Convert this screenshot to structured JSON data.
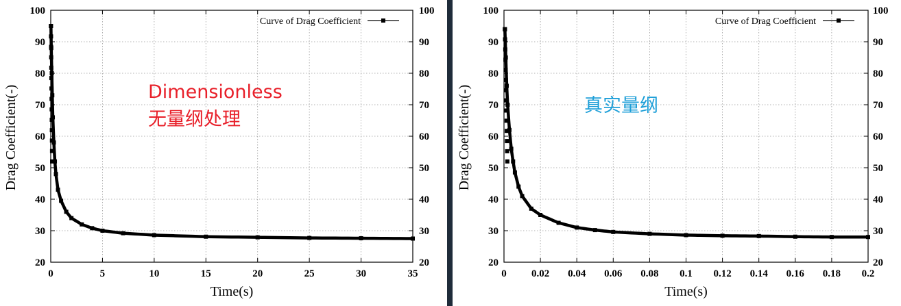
{
  "divider_color": "#1f2c3a",
  "chart_data": [
    {
      "type": "line",
      "title": "",
      "xlabel": "Time(s)",
      "ylabel": "Drag Coefficient(-)",
      "xlim": [
        0,
        35
      ],
      "ylim": [
        20,
        100
      ],
      "xticks": [
        "0",
        "5",
        "10",
        "15",
        "20",
        "25",
        "30",
        "35"
      ],
      "xtick_values": [
        0,
        5,
        10,
        15,
        20,
        25,
        30,
        35
      ],
      "yticks": [
        "20",
        "30",
        "40",
        "50",
        "60",
        "70",
        "80",
        "90",
        "100"
      ],
      "ytick_values": [
        20,
        30,
        40,
        50,
        60,
        70,
        80,
        90,
        100
      ],
      "grid": true,
      "legend_position": "top-right",
      "series": [
        {
          "name": "Curve of Drag Coefficient",
          "color": "#000000",
          "marker": "square",
          "x": [
            0.02,
            0.05,
            0.1,
            0.15,
            0.2,
            0.3,
            0.4,
            0.5,
            0.7,
            1.0,
            1.5,
            2,
            3,
            4,
            5,
            7,
            10,
            15,
            20,
            25,
            30,
            35
          ],
          "y": [
            95,
            88,
            80,
            73,
            66,
            58,
            52,
            48,
            43,
            39.5,
            36,
            34,
            32,
            30.8,
            30,
            29.2,
            28.6,
            28.1,
            27.9,
            27.7,
            27.6,
            27.5
          ]
        }
      ],
      "annotation": {
        "lines": [
          "Dimensionless",
          "无量纲处理"
        ],
        "color": "#e8202a"
      }
    },
    {
      "type": "line",
      "title": "",
      "xlabel": "Time(s)",
      "ylabel": "Drag Coefficient(-)",
      "xlim": [
        0,
        0.2
      ],
      "ylim": [
        20,
        100
      ],
      "xticks": [
        "0",
        "0.02",
        "0.04",
        "0.06",
        "0.08",
        "0.1",
        "0.12",
        "0.14",
        "0.16",
        "0.18",
        "0.2"
      ],
      "xtick_values": [
        0,
        0.02,
        0.04,
        0.06,
        0.08,
        0.1,
        0.12,
        0.14,
        0.16,
        0.18,
        0.2
      ],
      "yticks": [
        "20",
        "30",
        "40",
        "50",
        "60",
        "70",
        "80",
        "90",
        "100"
      ],
      "ytick_values": [
        20,
        30,
        40,
        50,
        60,
        70,
        80,
        90,
        100
      ],
      "grid": true,
      "legend_position": "top-right",
      "series": [
        {
          "name": "Curve of Drag Coefficient",
          "color": "#000000",
          "marker": "square",
          "x": [
            0.0005,
            0.001,
            0.0015,
            0.002,
            0.003,
            0.004,
            0.005,
            0.006,
            0.008,
            0.01,
            0.015,
            0.02,
            0.03,
            0.04,
            0.05,
            0.06,
            0.08,
            0.1,
            0.12,
            0.14,
            0.16,
            0.18,
            0.2
          ],
          "y": [
            94,
            85,
            76,
            70,
            62,
            56,
            52,
            48.5,
            44,
            41,
            37,
            35,
            32.5,
            31,
            30.2,
            29.6,
            29,
            28.6,
            28.4,
            28.3,
            28.1,
            28.0,
            28.0
          ]
        }
      ],
      "annotation": {
        "lines": [
          "真实量纲"
        ],
        "color": "#1e9fd8"
      }
    }
  ]
}
